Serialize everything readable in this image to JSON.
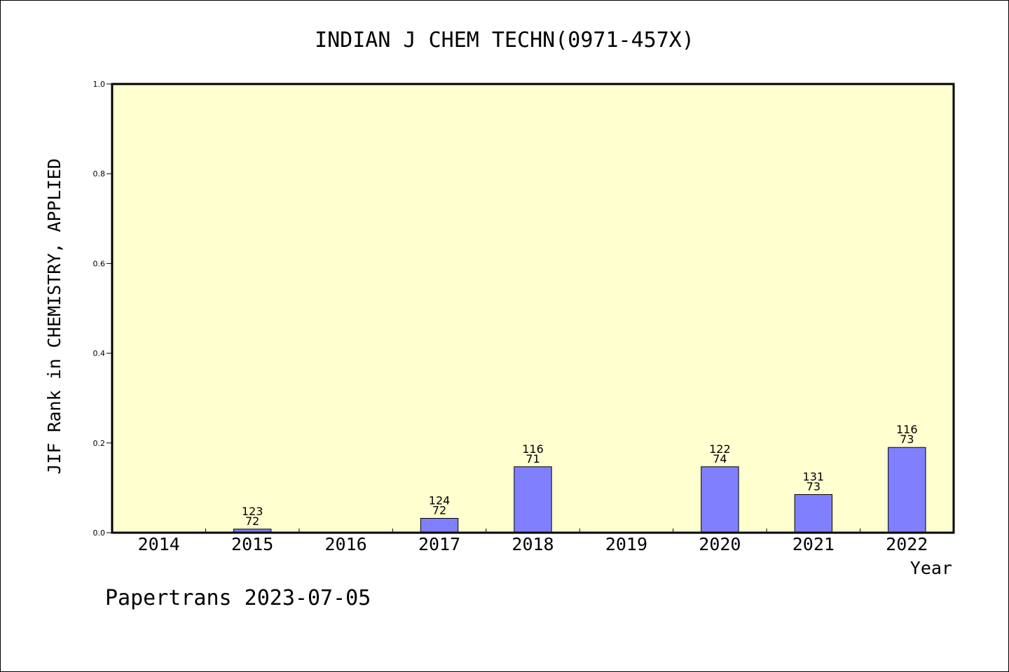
{
  "chart_data": {
    "type": "bar",
    "title": "INDIAN J CHEM TECHN(0971-457X)",
    "xlabel": "Year",
    "ylabel": "JIF Rank in CHEMISTRY, APPLIED",
    "ylim": [
      0,
      1.0
    ],
    "yticks": [
      "0.0",
      "0.2",
      "0.4",
      "0.6",
      "0.8",
      "1.0"
    ],
    "yticks_values": [
      0,
      0.2,
      0.4,
      0.6,
      0.8,
      1.0
    ],
    "categories": [
      "2014",
      "2015",
      "2016",
      "2017",
      "2018",
      "2019",
      "2020",
      "2021",
      "2022"
    ],
    "values": [
      null,
      0.008,
      null,
      0.032,
      0.147,
      null,
      0.147,
      0.085,
      0.19
    ],
    "labels_top": [
      null,
      "123",
      null,
      "124",
      "116",
      null,
      "122",
      "131",
      "116"
    ],
    "labels_bottom": [
      null,
      "72",
      null,
      "72",
      "71",
      null,
      "74",
      "73",
      "73"
    ],
    "plot_bg": "#ffffd0",
    "bar_color": "#8080ff",
    "footer": "Papertrans 2023-07-05"
  }
}
